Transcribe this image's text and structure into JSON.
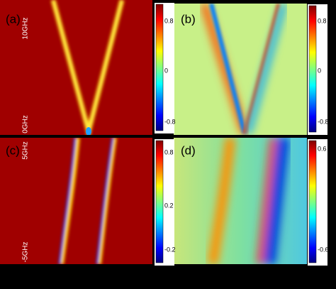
{
  "panels": [
    {
      "label": "(a)",
      "colorbar": [
        "0.8",
        "0",
        "-0.8"
      ]
    },
    {
      "label": "(b)",
      "colorbar": [
        "0.8",
        "0",
        "-0.8"
      ]
    },
    {
      "label": "(c)",
      "colorbar": [
        "0.8",
        "0.2",
        "-0.2"
      ]
    },
    {
      "label": "(d)",
      "colorbar": [
        "0.6",
        "-0.6"
      ]
    }
  ],
  "axis_labels": [
    "10GHz",
    "0GHz",
    "5GHz",
    "-5GHz"
  ]
}
